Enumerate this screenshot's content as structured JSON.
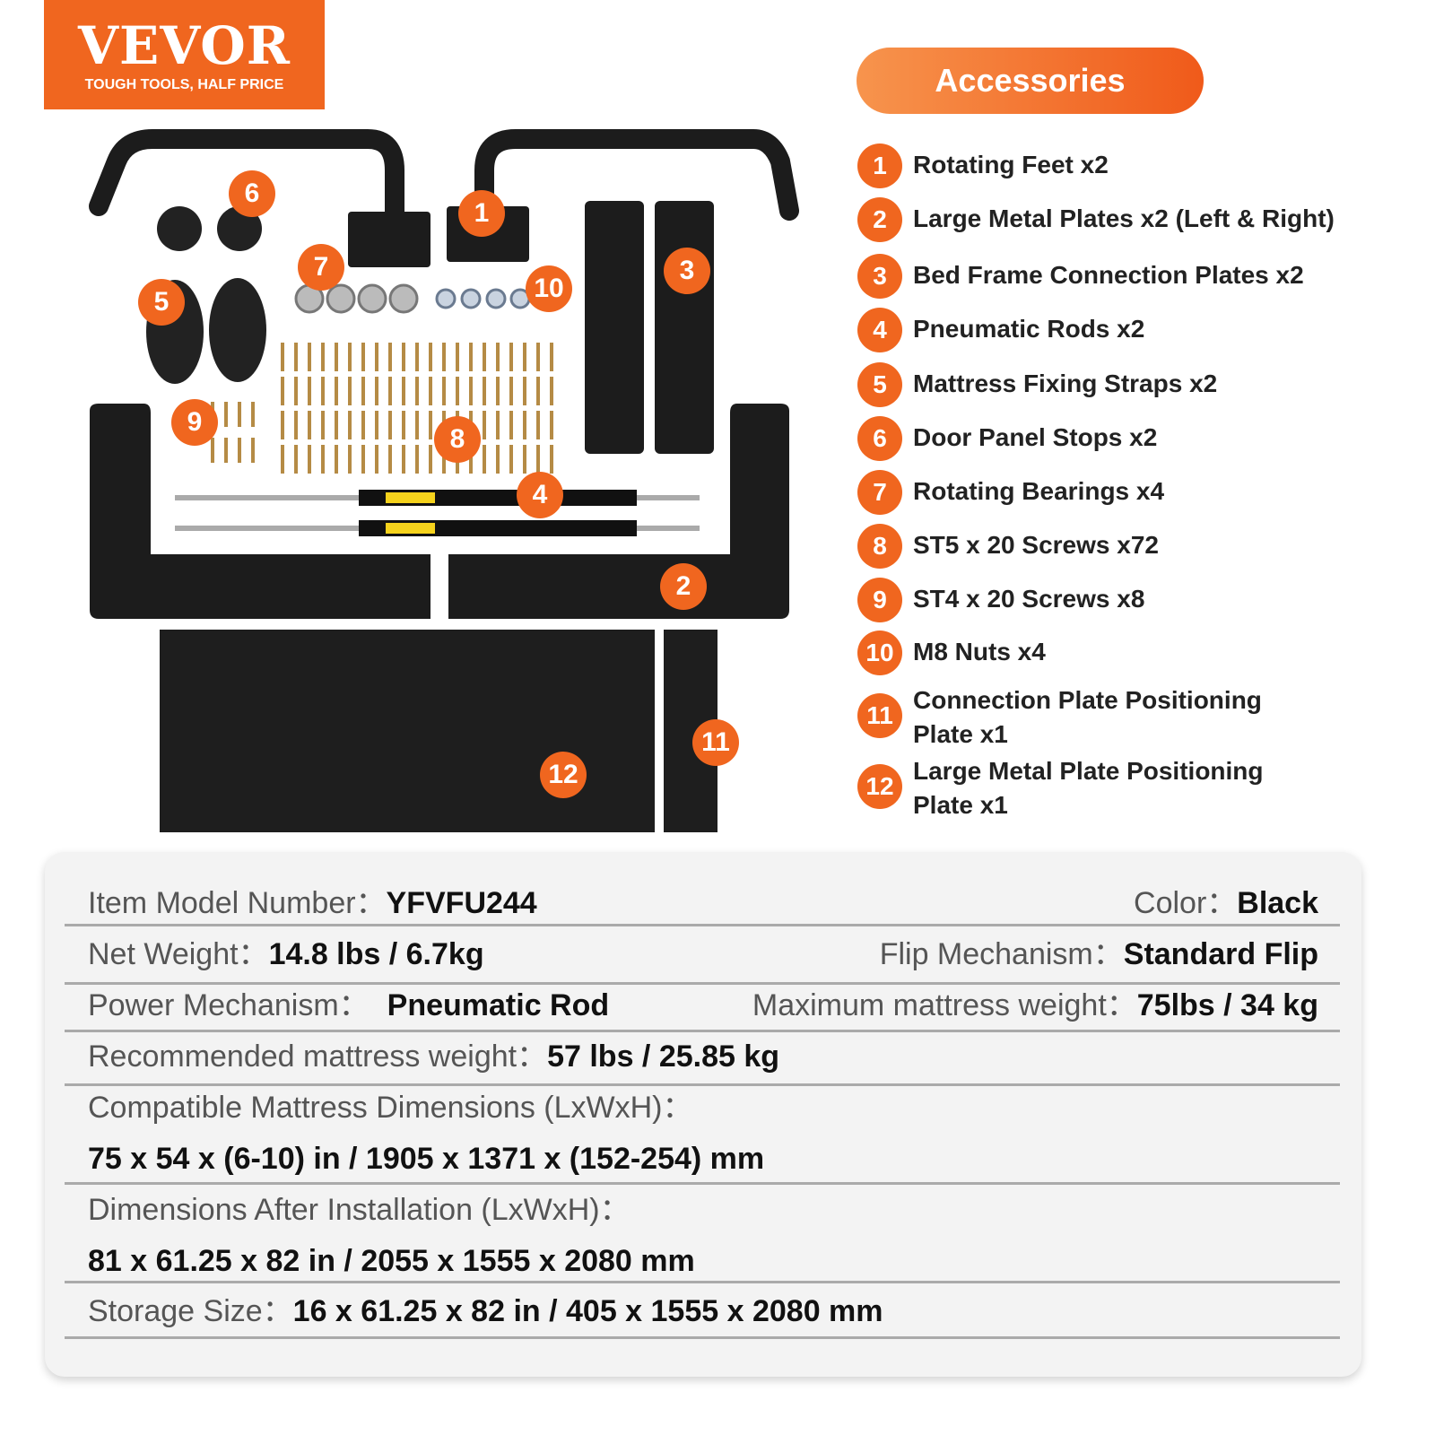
{
  "logo": {
    "brand": "VEVOR",
    "registered": "®",
    "tagline": "TOUGH TOOLS, HALF PRICE"
  },
  "accessories": {
    "title": "Accessories",
    "items": [
      {
        "n": "1",
        "label": "Rotating Feet x2"
      },
      {
        "n": "2",
        "label": "Large Metal Plates x2 (Left & Right)"
      },
      {
        "n": "3",
        "label": "Bed Frame Connection Plates x2"
      },
      {
        "n": "4",
        "label": "Pneumatic Rods x2"
      },
      {
        "n": "5",
        "label": "Mattress Fixing Straps x2"
      },
      {
        "n": "6",
        "label": "Door Panel Stops x2"
      },
      {
        "n": "7",
        "label": "Rotating Bearings x4"
      },
      {
        "n": "8",
        "label": "ST5 x 20 Screws x72"
      },
      {
        "n": "9",
        "label": "ST4 x 20 Screws x8"
      },
      {
        "n": "10",
        "label": "M8 Nuts x4"
      },
      {
        "n": "11",
        "label": "Connection Plate Positioning Plate x1"
      },
      {
        "n": "12",
        "label": "Large Metal Plate Positioning Plate x1"
      }
    ]
  },
  "specs": {
    "model_label": "Item Model Number：",
    "model": "YFVFU244",
    "color_label": "Color：",
    "color": "Black",
    "weight_label": "Net Weight：",
    "weight": "14.8 lbs / 6.7kg",
    "flip_label": "Flip Mechanism：",
    "flip": "Standard Flip",
    "power_label": "Power Mechanism：",
    "power": "Pneumatic Rod",
    "maxw_label": "Maximum mattress weight：",
    "maxw": "75lbs / 34 kg",
    "recw_label": "Recommended mattress weight：",
    "recw": "57 lbs / 25.85 kg",
    "compat_label": "Compatible Mattress Dimensions (LxWxH)：",
    "compat": "75 x 54 x (6-10) in / 1905 x 1371 x (152-254) mm",
    "after_label": "Dimensions After Installation (LxWxH)：",
    "after": "81 x 61.25 x 82 in / 2055 x 1555 x 2080 mm",
    "storage_label": "Storage Size：",
    "storage": "16 x 61.25 x 82 in / 405 x 1555 x 2080 mm"
  },
  "colors": {
    "accent": "#f0661f",
    "panel": "#f3f3f3",
    "parts": "#1c1c1c"
  }
}
